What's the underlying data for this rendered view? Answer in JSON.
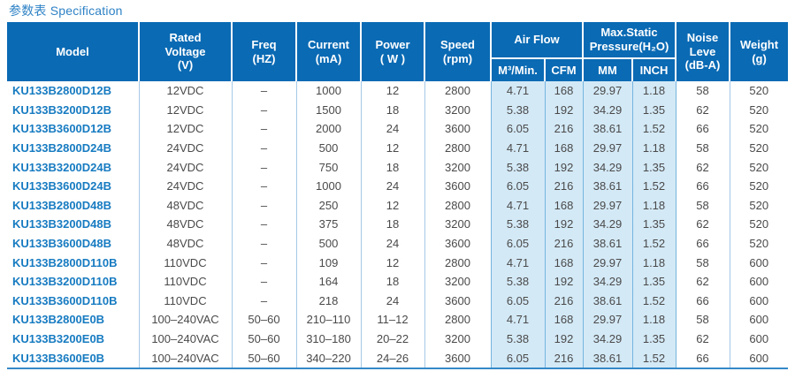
{
  "page": {
    "title": "参数表 Specification"
  },
  "colors": {
    "header_bg": "#0a6ab4",
    "header_text": "#ffffff",
    "title_text": "#2e82c5",
    "model_text": "#177bc1",
    "body_text": "#4a4a4a",
    "highlight_bg": "#d4e9f6",
    "divider_light": "#a4c9e6",
    "divider_medium": "#74b4de",
    "table_bottom_border": "#3488c8"
  },
  "table": {
    "header": {
      "model": "Model",
      "rated_voltage": "Rated\nVoltage\n(V)",
      "freq": "Freq\n(HZ)",
      "current": "Current\n(mA)",
      "power": "Power\n( W )",
      "speed": "Speed\n(rpm)",
      "air_flow": "Air Flow",
      "max_static_pressure": "Max.Static\nPressure(H₂O)",
      "noise": "Noise\nLeve\n(dB-A)",
      "weight": "Weight\n(g)",
      "sub": {
        "m3min": "M³/Min.",
        "cfm": "CFM",
        "mm": "MM",
        "inch": "INCH"
      }
    },
    "fields": [
      "model",
      "rated_voltage",
      "freq_hz",
      "current_ma",
      "power_w",
      "speed_rpm",
      "airflow_m3min",
      "airflow_cfm",
      "pressure_mm",
      "pressure_inch",
      "noise_dba",
      "weight_g"
    ],
    "rows": [
      [
        "KU133B2800D12B",
        "12VDC",
        "–",
        "1000",
        "12",
        "2800",
        "4.71",
        "168",
        "29.97",
        "1.18",
        "58",
        "520"
      ],
      [
        "KU133B3200D12B",
        "12VDC",
        "–",
        "1500",
        "18",
        "3200",
        "5.38",
        "192",
        "34.29",
        "1.35",
        "62",
        "520"
      ],
      [
        "KU133B3600D12B",
        "12VDC",
        "–",
        "2000",
        "24",
        "3600",
        "6.05",
        "216",
        "38.61",
        "1.52",
        "66",
        "520"
      ],
      [
        "KU133B2800D24B",
        "24VDC",
        "–",
        "500",
        "12",
        "2800",
        "4.71",
        "168",
        "29.97",
        "1.18",
        "58",
        "520"
      ],
      [
        "KU133B3200D24B",
        "24VDC",
        "–",
        "750",
        "18",
        "3200",
        "5.38",
        "192",
        "34.29",
        "1.35",
        "62",
        "520"
      ],
      [
        "KU133B3600D24B",
        "24VDC",
        "–",
        "1000",
        "24",
        "3600",
        "6.05",
        "216",
        "38.61",
        "1.52",
        "66",
        "520"
      ],
      [
        "KU133B2800D48B",
        "48VDC",
        "–",
        "250",
        "12",
        "2800",
        "4.71",
        "168",
        "29.97",
        "1.18",
        "58",
        "520"
      ],
      [
        "KU133B3200D48B",
        "48VDC",
        "–",
        "375",
        "18",
        "3200",
        "5.38",
        "192",
        "34.29",
        "1.35",
        "62",
        "520"
      ],
      [
        "KU133B3600D48B",
        "48VDC",
        "–",
        "500",
        "24",
        "3600",
        "6.05",
        "216",
        "38.61",
        "1.52",
        "66",
        "520"
      ],
      [
        "KU133B2800D110B",
        "110VDC",
        "–",
        "109",
        "12",
        "2800",
        "4.71",
        "168",
        "29.97",
        "1.18",
        "58",
        "600"
      ],
      [
        "KU133B3200D110B",
        "110VDC",
        "–",
        "164",
        "18",
        "3200",
        "5.38",
        "192",
        "34.29",
        "1.35",
        "62",
        "600"
      ],
      [
        "KU133B3600D110B",
        "110VDC",
        "–",
        "218",
        "24",
        "3600",
        "6.05",
        "216",
        "38.61",
        "1.52",
        "66",
        "600"
      ],
      [
        "KU133B2800E0B",
        "100–240VAC",
        "50–60",
        "210–110",
        "11–12",
        "2800",
        "4.71",
        "168",
        "29.97",
        "1.18",
        "58",
        "600"
      ],
      [
        "KU133B3200E0B",
        "100–240VAC",
        "50–60",
        "310–180",
        "20–22",
        "3200",
        "5.38",
        "192",
        "34.29",
        "1.35",
        "62",
        "600"
      ],
      [
        "KU133B3600E0B",
        "100–240VAC",
        "50–60",
        "340–220",
        "24–26",
        "3600",
        "6.05",
        "216",
        "38.61",
        "1.52",
        "66",
        "600"
      ]
    ]
  }
}
